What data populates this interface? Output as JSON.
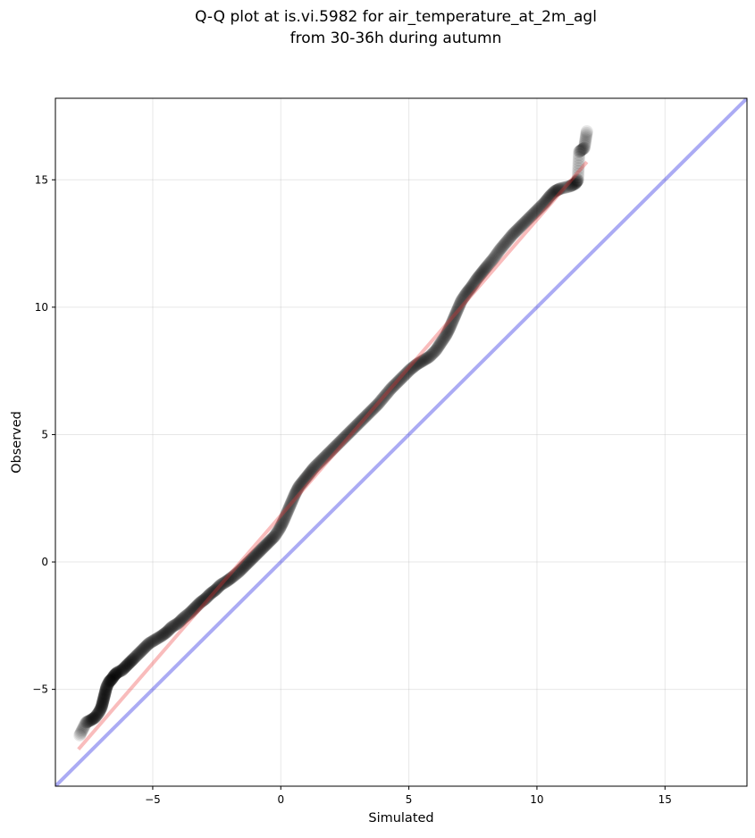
{
  "chart_data": {
    "type": "scatter",
    "title_lines": [
      "Q-Q plot at is.vi.5982 for air_temperature_at_2m_agl",
      "from 30-36h during autumn"
    ],
    "xlabel": "Simulated",
    "ylabel": "Observed",
    "xlim": [
      -8.8,
      18.2
    ],
    "ylim": [
      -8.8,
      18.2
    ],
    "xticks": [
      -5,
      0,
      5,
      10,
      15
    ],
    "yticks": [
      -5,
      0,
      5,
      10,
      15
    ],
    "xtick_labels": [
      "−5",
      "0",
      "5",
      "10",
      "15"
    ],
    "ytick_labels": [
      "−5",
      "0",
      "5",
      "10",
      "15"
    ],
    "grid": true,
    "reference_line": {
      "x": [
        -8.8,
        18.2
      ],
      "y": [
        -8.8,
        18.2
      ],
      "color": "#0000dd"
    },
    "fit_line": {
      "x": [
        -7.9,
        11.95
      ],
      "y": [
        -7.35,
        15.7
      ],
      "color": "#ee3333"
    },
    "points": {
      "color": "#000000",
      "x": [
        -7.85,
        -7.6,
        -7.4,
        -7.25,
        -7.1,
        -7.0,
        -6.95,
        -6.9,
        -6.85,
        -6.8,
        -6.7,
        -6.6,
        -6.5,
        -6.4,
        -6.2,
        -6.05,
        -5.9,
        -5.75,
        -5.55,
        -5.35,
        -5.15,
        -4.9,
        -4.65,
        -4.45,
        -4.25,
        -4.0,
        -3.8,
        -3.55,
        -3.35,
        -3.15,
        -2.95,
        -2.75,
        -2.55,
        -2.35,
        -2.1,
        -1.9,
        -1.65,
        -1.45,
        -1.25,
        -1.05,
        -0.85,
        -0.65,
        -0.45,
        -0.25,
        -0.05,
        0.1,
        0.25,
        0.4,
        0.55,
        0.7,
        0.9,
        1.1,
        1.3,
        1.55,
        1.8,
        2.05,
        2.3,
        2.55,
        2.8,
        3.05,
        3.3,
        3.55,
        3.8,
        4.05,
        4.3,
        4.55,
        4.8,
        5.05,
        5.3,
        5.55,
        5.8,
        6.05,
        6.25,
        6.45,
        6.6,
        6.75,
        6.9,
        7.05,
        7.25,
        7.45,
        7.65,
        7.85,
        8.05,
        8.3,
        8.55,
        8.8,
        9.05,
        9.3,
        9.55,
        9.8,
        10.05,
        10.3,
        10.5,
        10.7,
        10.9,
        11.3,
        11.5,
        11.6,
        11.65,
        11.85,
        11.95
      ],
      "y": [
        -6.8,
        -6.3,
        -6.2,
        -6.1,
        -5.9,
        -5.7,
        -5.5,
        -5.3,
        -5.1,
        -4.9,
        -4.7,
        -4.6,
        -4.45,
        -4.35,
        -4.25,
        -4.1,
        -3.95,
        -3.8,
        -3.6,
        -3.4,
        -3.2,
        -3.05,
        -2.9,
        -2.75,
        -2.55,
        -2.4,
        -2.2,
        -2.0,
        -1.8,
        -1.6,
        -1.45,
        -1.25,
        -1.1,
        -0.9,
        -0.75,
        -0.6,
        -0.4,
        -0.2,
        0.0,
        0.2,
        0.4,
        0.6,
        0.8,
        1.0,
        1.3,
        1.6,
        1.95,
        2.3,
        2.65,
        2.95,
        3.2,
        3.45,
        3.7,
        3.95,
        4.2,
        4.45,
        4.7,
        4.95,
        5.2,
        5.45,
        5.7,
        5.95,
        6.2,
        6.5,
        6.8,
        7.05,
        7.3,
        7.55,
        7.75,
        7.9,
        8.05,
        8.3,
        8.6,
        8.9,
        9.2,
        9.55,
        9.9,
        10.25,
        10.55,
        10.8,
        11.1,
        11.35,
        11.6,
        11.9,
        12.25,
        12.55,
        12.85,
        13.1,
        13.35,
        13.6,
        13.85,
        14.1,
        14.35,
        14.55,
        14.65,
        14.75,
        14.85,
        15.0,
        16.1,
        16.25,
        16.9
      ]
    }
  }
}
